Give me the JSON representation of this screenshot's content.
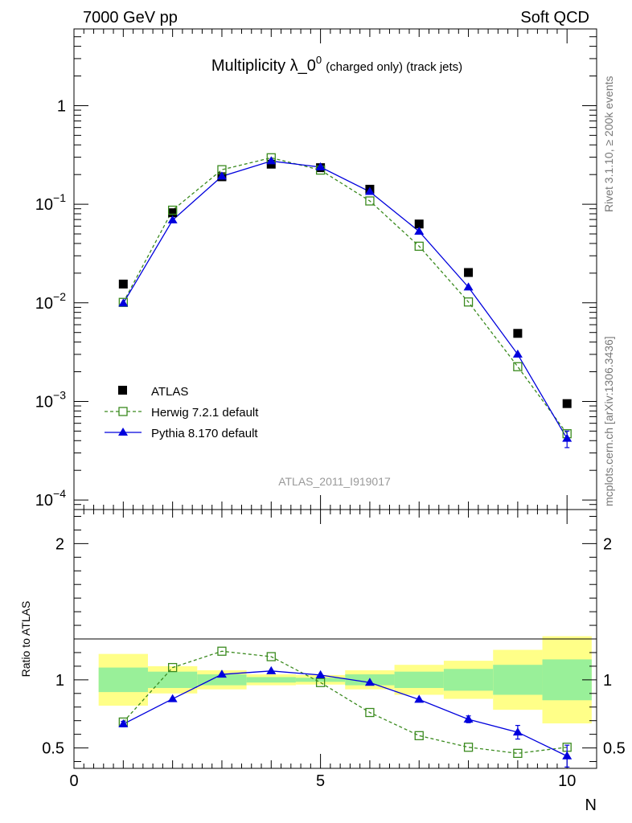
{
  "header": {
    "left_label": "7000 GeV pp",
    "right_label": "Soft QCD"
  },
  "side_text": {
    "rivet": "Rivet 3.1.10, ≥ 200k events",
    "mcplots": "mcplots.cern.ch [arXiv:1306.3436]"
  },
  "chart_data": [
    {
      "type": "scatter",
      "panel": "main",
      "title": "Multiplicity λ_0^0 (charged only) (track jets)",
      "title_main": "Multiplicity λ_0",
      "title_sup": "0",
      "title_sub": "(charged only) (track jets)",
      "analysis_label": "ATLAS_2011_I919017",
      "yscale": "log",
      "ylim": [
        8e-05,
        6
      ],
      "xlim": [
        0,
        10.6
      ],
      "y_tick_labels": [
        {
          "base": "10",
          "exp": "−4",
          "value": 0.0001
        },
        {
          "base": "10",
          "exp": "−3",
          "value": 0.001
        },
        {
          "base": "10",
          "exp": "−2",
          "value": 0.01
        },
        {
          "base": "10",
          "exp": "−1",
          "value": 0.1
        },
        {
          "base": "1",
          "exp": "",
          "value": 1
        }
      ],
      "legend_position": "lower-left",
      "series": [
        {
          "name": "ATLAS",
          "style": "black-square",
          "x": [
            1,
            2,
            3,
            4,
            5,
            6,
            7,
            8,
            9,
            10
          ],
          "y": [
            0.0155,
            0.082,
            0.19,
            0.255,
            0.235,
            0.142,
            0.063,
            0.0203,
            0.0049,
            0.00095
          ]
        },
        {
          "name": "Herwig 7.2.1 default",
          "style": "green-dashed-open-square",
          "color": "#3a8a1e",
          "x": [
            1,
            2,
            3,
            4,
            5,
            6,
            7,
            8,
            9,
            10
          ],
          "y": [
            0.0101,
            0.087,
            0.224,
            0.296,
            0.222,
            0.108,
            0.0375,
            0.0102,
            0.00225,
            0.00047
          ]
        },
        {
          "name": "Pythia 8.170 default",
          "style": "blue-solid-triangle",
          "color": "#0000dd",
          "x": [
            1,
            2,
            3,
            4,
            5,
            6,
            7,
            8,
            9,
            10
          ],
          "y": [
            0.0099,
            0.069,
            0.192,
            0.274,
            0.238,
            0.134,
            0.053,
            0.0144,
            0.003,
            0.00042
          ],
          "yerr": [
            0,
            0,
            0,
            0,
            0,
            0,
            0,
            0,
            0,
            8e-05
          ]
        }
      ]
    },
    {
      "type": "scatter",
      "panel": "ratio",
      "ylabel": "Ratio to ATLAS",
      "xlabel": "N",
      "ylim": [
        0.35,
        2.25
      ],
      "xlim": [
        0,
        10.6
      ],
      "x_tick_labels": [
        "0",
        "5",
        "10"
      ],
      "y_tick_labels": [
        "0.5",
        "1",
        "2"
      ],
      "bands": {
        "x_edges": [
          0.5,
          1.5,
          2.5,
          3.5,
          4.5,
          5.5,
          6.5,
          7.5,
          8.5,
          9.5,
          10.5
        ],
        "stat_low": [
          0.91,
          0.94,
          0.96,
          0.98,
          0.985,
          0.96,
          0.94,
          0.92,
          0.89,
          0.85
        ],
        "stat_high": [
          1.09,
          1.06,
          1.04,
          1.02,
          1.015,
          1.04,
          1.06,
          1.08,
          1.11,
          1.15
        ],
        "total_low": [
          0.81,
          0.9,
          0.93,
          0.96,
          0.965,
          0.93,
          0.89,
          0.86,
          0.78,
          0.68
        ],
        "total_high": [
          1.19,
          1.1,
          1.07,
          1.04,
          1.035,
          1.07,
          1.11,
          1.14,
          1.22,
          1.32
        ]
      },
      "series": [
        {
          "name": "Herwig 7.2.1 default",
          "color": "#3a8a1e",
          "x": [
            1,
            2,
            3,
            4,
            5,
            6,
            7,
            8,
            9,
            10
          ],
          "y": [
            0.69,
            1.09,
            1.21,
            1.17,
            0.98,
            0.76,
            0.59,
            0.505,
            0.46,
            0.505
          ]
        },
        {
          "name": "Pythia 8.170 default",
          "color": "#0000dd",
          "x": [
            1,
            2,
            3,
            4,
            5,
            6,
            7,
            8,
            9,
            10
          ],
          "y": [
            0.675,
            0.86,
            1.04,
            1.065,
            1.035,
            0.98,
            0.855,
            0.71,
            0.615,
            0.44
          ],
          "yerr": [
            0.02,
            0,
            0,
            0,
            0,
            0,
            0,
            0.025,
            0.05,
            0.08
          ]
        }
      ]
    }
  ]
}
